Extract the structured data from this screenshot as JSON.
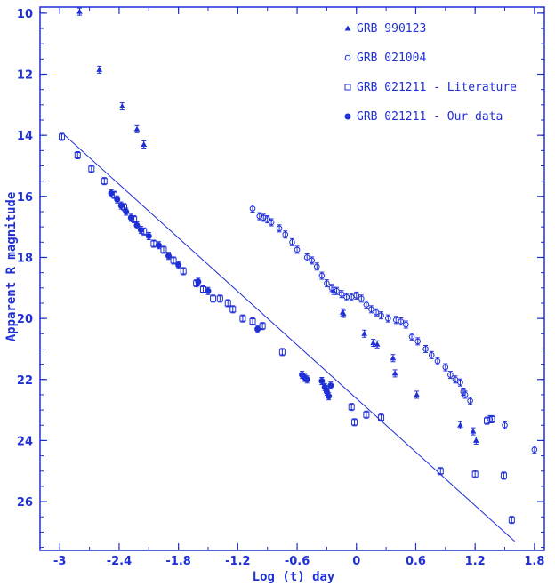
{
  "chart_data": {
    "type": "scatter",
    "title": "",
    "xlabel": "Log (t) day",
    "ylabel": "Apparent R magnitude",
    "xlim": [
      -3.2,
      1.9
    ],
    "ylim": [
      27.6,
      9.8
    ],
    "y_inverted": true,
    "xticks": [
      -3,
      -2.4,
      -1.8,
      -1.2,
      -0.6,
      0,
      0.6,
      1.2,
      1.8
    ],
    "xtick_labels": [
      "-3",
      "-2.4",
      "-1.8",
      "-1.2",
      "-0.6",
      "0",
      "0.6",
      "1.2",
      "1.8"
    ],
    "yticks": [
      10,
      12,
      14,
      16,
      18,
      20,
      22,
      24,
      26
    ],
    "ytick_labels": [
      "10",
      "12",
      "14",
      "16",
      "18",
      "20",
      "22",
      "24",
      "26"
    ],
    "grid": false,
    "legend_position": "top-right",
    "color": "#1f2fd6",
    "fit_line": {
      "x": [
        -2.95,
        1.6
      ],
      "y": [
        14.0,
        27.3
      ]
    },
    "series": [
      {
        "name": "GRB 990123",
        "marker": "triangle",
        "points": [
          [
            -2.8,
            9.95
          ],
          [
            -2.6,
            11.85
          ],
          [
            -2.37,
            13.05
          ],
          [
            -2.22,
            13.8
          ],
          [
            -2.15,
            14.3
          ],
          [
            -0.23,
            19.1
          ],
          [
            -0.14,
            19.8
          ],
          [
            -0.13,
            19.85
          ],
          [
            0.08,
            20.5
          ],
          [
            0.17,
            20.8
          ],
          [
            0.21,
            20.85
          ],
          [
            0.37,
            21.3
          ],
          [
            0.39,
            21.8
          ],
          [
            0.61,
            22.5
          ],
          [
            1.05,
            23.5
          ],
          [
            1.18,
            23.7
          ],
          [
            1.21,
            24.0
          ]
        ]
      },
      {
        "name": "GRB 021004",
        "marker": "circle",
        "points": [
          [
            -1.05,
            16.4
          ],
          [
            -0.98,
            16.65
          ],
          [
            -0.94,
            16.7
          ],
          [
            -0.9,
            16.75
          ],
          [
            -0.86,
            16.85
          ],
          [
            -0.78,
            17.05
          ],
          [
            -0.72,
            17.25
          ],
          [
            -0.65,
            17.5
          ],
          [
            -0.6,
            17.75
          ],
          [
            -0.5,
            18.0
          ],
          [
            -0.45,
            18.1
          ],
          [
            -0.4,
            18.3
          ],
          [
            -0.35,
            18.6
          ],
          [
            -0.3,
            18.85
          ],
          [
            -0.25,
            19.0
          ],
          [
            -0.2,
            19.1
          ],
          [
            -0.15,
            19.2
          ],
          [
            -0.1,
            19.3
          ],
          [
            -0.05,
            19.3
          ],
          [
            0.0,
            19.25
          ],
          [
            0.05,
            19.35
          ],
          [
            0.1,
            19.55
          ],
          [
            0.15,
            19.7
          ],
          [
            0.2,
            19.8
          ],
          [
            0.25,
            19.9
          ],
          [
            0.32,
            20.0
          ],
          [
            0.4,
            20.05
          ],
          [
            0.45,
            20.1
          ],
          [
            0.5,
            20.2
          ],
          [
            0.56,
            20.6
          ],
          [
            0.62,
            20.75
          ],
          [
            0.7,
            21.0
          ],
          [
            0.76,
            21.2
          ],
          [
            0.82,
            21.4
          ],
          [
            0.9,
            21.6
          ],
          [
            0.95,
            21.85
          ],
          [
            1.0,
            22.0
          ],
          [
            1.05,
            22.1
          ],
          [
            1.08,
            22.4
          ],
          [
            1.1,
            22.5
          ],
          [
            1.15,
            22.7
          ],
          [
            1.35,
            23.3
          ],
          [
            1.5,
            23.5
          ],
          [
            1.8,
            24.3
          ]
        ]
      },
      {
        "name": "GRB 021211 - Literature",
        "marker": "square",
        "points": [
          [
            -2.98,
            14.05
          ],
          [
            -2.82,
            14.65
          ],
          [
            -2.68,
            15.1
          ],
          [
            -2.55,
            15.5
          ],
          [
            -2.45,
            15.95
          ],
          [
            -2.35,
            16.35
          ],
          [
            -2.25,
            16.75
          ],
          [
            -2.15,
            17.15
          ],
          [
            -2.05,
            17.55
          ],
          [
            -1.95,
            17.75
          ],
          [
            -1.85,
            18.1
          ],
          [
            -1.75,
            18.45
          ],
          [
            -1.62,
            18.85
          ],
          [
            -1.55,
            19.05
          ],
          [
            -1.45,
            19.35
          ],
          [
            -1.38,
            19.35
          ],
          [
            -1.3,
            19.5
          ],
          [
            -1.25,
            19.7
          ],
          [
            -1.15,
            20.0
          ],
          [
            -1.05,
            20.1
          ],
          [
            -0.95,
            20.25
          ],
          [
            -0.75,
            21.1
          ],
          [
            -0.05,
            22.9
          ],
          [
            -0.02,
            23.4
          ],
          [
            0.1,
            23.15
          ],
          [
            0.25,
            23.25
          ],
          [
            0.85,
            25.0
          ],
          [
            1.2,
            25.1
          ],
          [
            1.32,
            23.35
          ],
          [
            1.37,
            23.3
          ],
          [
            1.49,
            25.15
          ],
          [
            1.57,
            26.6
          ]
        ]
      },
      {
        "name": "GRB 021211 - Our data",
        "marker": "filled-circle",
        "points": [
          [
            -2.48,
            15.9
          ],
          [
            -2.42,
            16.1
          ],
          [
            -2.38,
            16.3
          ],
          [
            -2.33,
            16.5
          ],
          [
            -2.28,
            16.7
          ],
          [
            -2.22,
            16.95
          ],
          [
            -2.18,
            17.1
          ],
          [
            -2.1,
            17.3
          ],
          [
            -2.0,
            17.6
          ],
          [
            -1.9,
            17.95
          ],
          [
            -1.8,
            18.25
          ],
          [
            -1.6,
            18.8
          ],
          [
            -1.5,
            19.1
          ],
          [
            -1.0,
            20.35
          ],
          [
            -0.55,
            21.85
          ],
          [
            -0.52,
            21.95
          ],
          [
            -0.5,
            22.0
          ],
          [
            -0.35,
            22.05
          ],
          [
            -0.32,
            22.25
          ],
          [
            -0.3,
            22.4
          ],
          [
            -0.28,
            22.55
          ],
          [
            -0.26,
            22.2
          ]
        ]
      }
    ]
  }
}
